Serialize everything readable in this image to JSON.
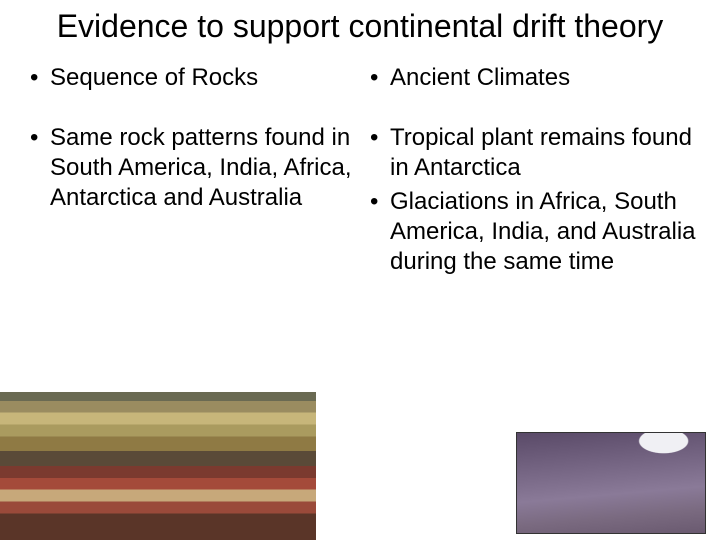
{
  "title": "Evidence to support continental drift theory",
  "left": {
    "heading": "Sequence of Rocks",
    "points": [
      "Same rock patterns found in South America, India, Africa, Antarctica and Australia"
    ]
  },
  "right": {
    "heading": "Ancient Climates",
    "points": [
      "Tropical plant remains found in Antarctica",
      "Glaciations in Africa, South America, India, and Australia during the same time"
    ]
  },
  "colors": {
    "background": "#ffffff",
    "text": "#000000"
  },
  "font": {
    "title_size": 32,
    "body_size": 24,
    "family": "Arial"
  },
  "images": {
    "left": {
      "name": "rock-strata-photo",
      "desc": "Layered sedimentary rock strata in tan, brown and rust bands"
    },
    "right": {
      "name": "glacial-rock-photo",
      "desc": "Grey-purple glaciated rock surface with white patch upper right"
    }
  }
}
